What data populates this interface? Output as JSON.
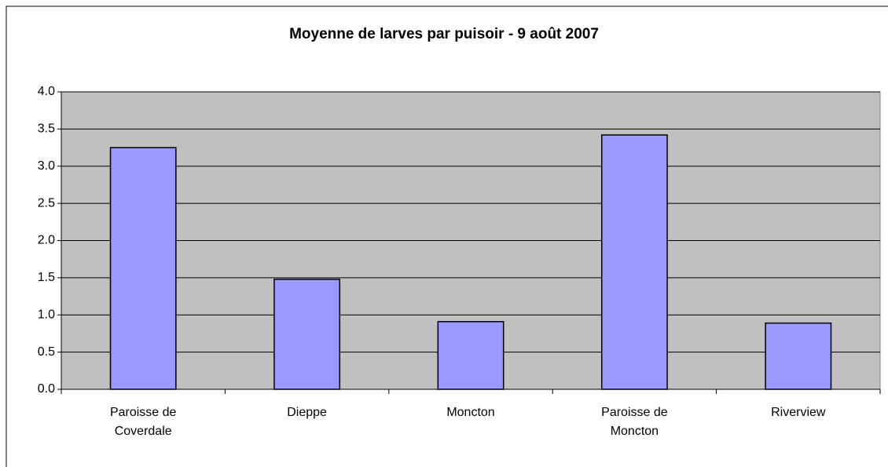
{
  "chart_data": {
    "type": "bar",
    "title": "Moyenne de larves par puisoir - 9 août 2007",
    "categories": [
      "Paroisse de Coverdale",
      "Dieppe",
      "Moncton",
      "Paroisse de Moncton",
      "Riverview"
    ],
    "values": [
      3.25,
      1.48,
      0.91,
      3.42,
      0.89
    ],
    "color": "#9999ff",
    "ylim": [
      0,
      4
    ],
    "yticks": [
      {
        "value": 0,
        "label": "0.0"
      },
      0.5,
      {
        "value": 1,
        "label": "1.0"
      },
      1.5,
      {
        "value": 2,
        "label": "2.0"
      },
      2.5,
      {
        "value": 3,
        "label": "3.0"
      },
      3.5,
      {
        "value": 4,
        "label": "4.0"
      }
    ],
    "grid": true
  }
}
